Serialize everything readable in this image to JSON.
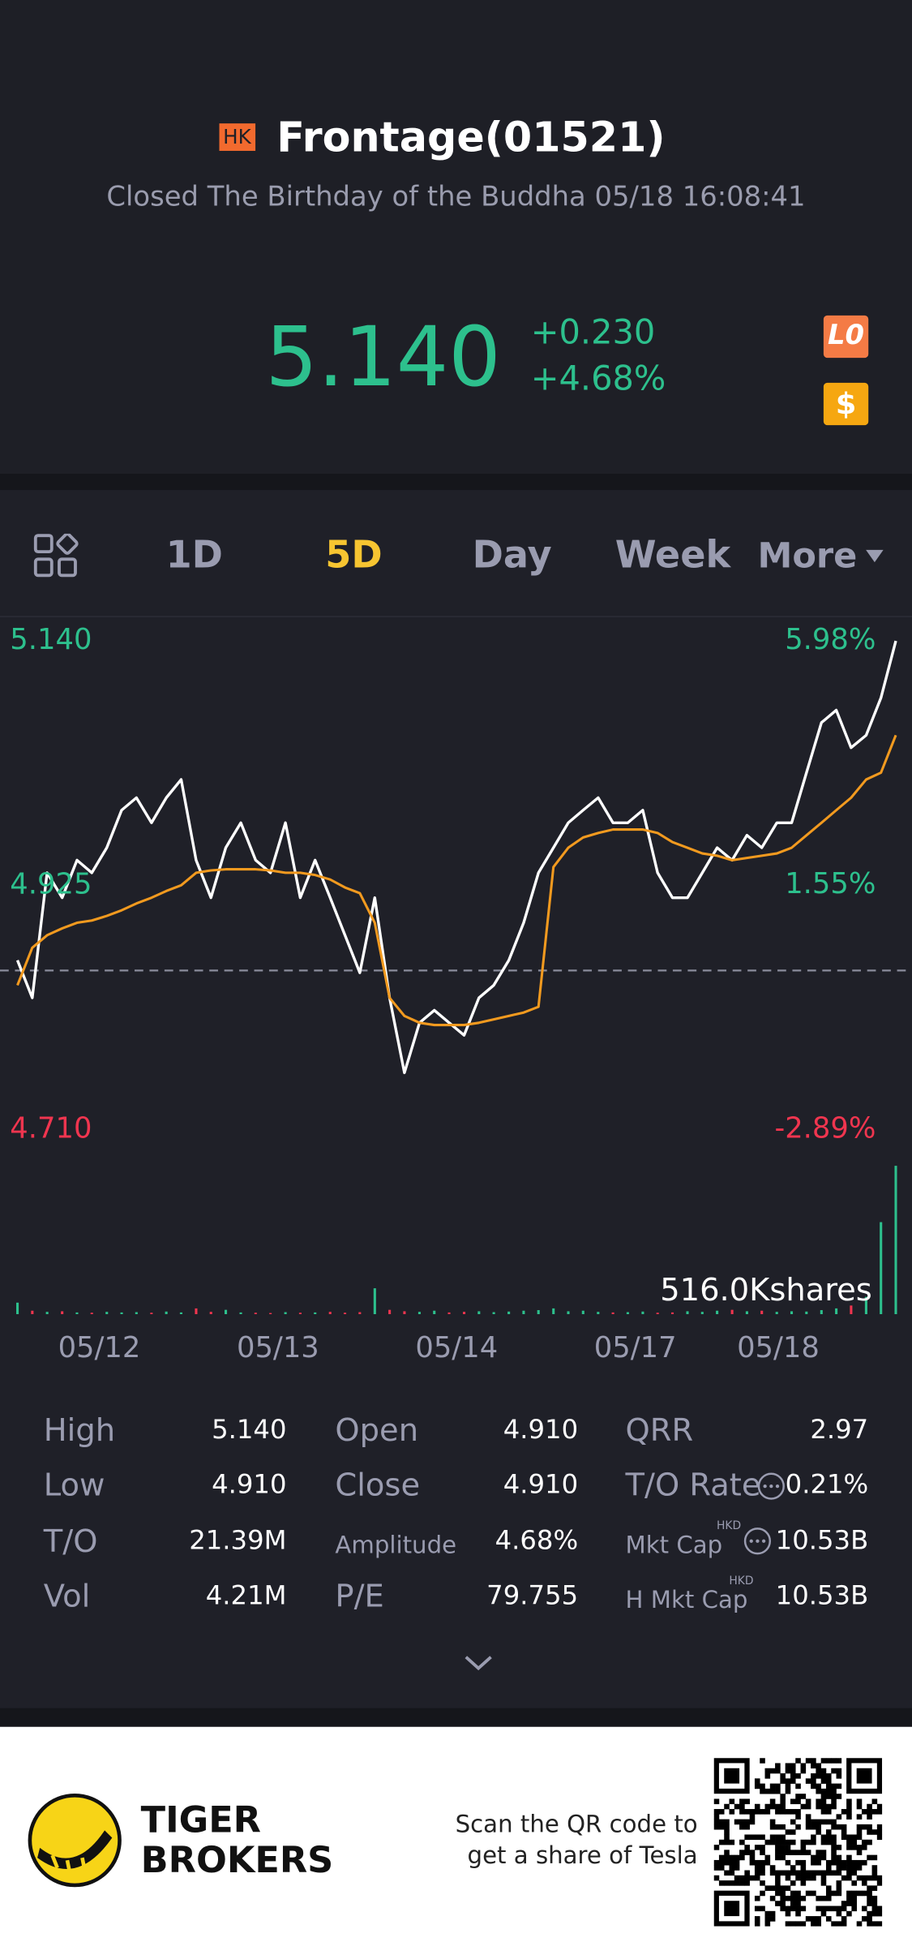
{
  "header": {
    "market": "HK",
    "title": "Frontage(01521)",
    "status": "Closed The Birthday of the Buddha 05/18 16:08:41"
  },
  "quote": {
    "price": "5.140",
    "change": "+0.230",
    "change_pct": "+4.68%",
    "level_badge": "L0"
  },
  "tabs": [
    "1D",
    "5D",
    "Day",
    "Week",
    "More"
  ],
  "chart_data": {
    "type": "line",
    "x": [
      0.042,
      0.125,
      0.208,
      0.292,
      0.375,
      0.458,
      0.542,
      0.625,
      0.708,
      0.792,
      0.875,
      0.958,
      1.042,
      1.125,
      1.208,
      1.292,
      1.375,
      1.458,
      1.542,
      1.625,
      1.708,
      1.792,
      1.875,
      1.958,
      2.042,
      2.125,
      2.208,
      2.292,
      2.375,
      2.458,
      2.542,
      2.625,
      2.708,
      2.792,
      2.875,
      2.958,
      3.042,
      3.125,
      3.208,
      3.292,
      3.375,
      3.458,
      3.542,
      3.625,
      3.708,
      3.792,
      3.875,
      3.958,
      4.042,
      4.125,
      4.208,
      4.292,
      4.375,
      4.458,
      4.542,
      4.625,
      4.708,
      4.792,
      4.875,
      4.958
    ],
    "series": [
      {
        "color": "#ffffff",
        "values": [
          4.859,
          4.826,
          4.936,
          4.914,
          4.947,
          4.936,
          4.958,
          4.991,
          5.002,
          4.98,
          5.002,
          5.018,
          4.947,
          4.914,
          4.958,
          4.98,
          4.947,
          4.936,
          4.98,
          4.914,
          4.947,
          4.914,
          4.881,
          4.848,
          4.914,
          4.826,
          4.76,
          4.804,
          4.815,
          4.804,
          4.793,
          4.826,
          4.837,
          4.859,
          4.892,
          4.936,
          4.958,
          4.98,
          4.991,
          5.002,
          4.98,
          4.98,
          4.991,
          4.936,
          4.914,
          4.914,
          4.936,
          4.958,
          4.947,
          4.969,
          4.958,
          4.98,
          4.98,
          5.024,
          5.068,
          5.079,
          5.046,
          5.057,
          5.09,
          5.14
        ]
      },
      {
        "color": "#f29a1f",
        "values": [
          4.837,
          4.87,
          4.881,
          4.887,
          4.892,
          4.894,
          4.898,
          4.903,
          4.909,
          4.914,
          4.92,
          4.925,
          4.936,
          4.938,
          4.939,
          4.939,
          4.939,
          4.938,
          4.936,
          4.936,
          4.934,
          4.93,
          4.923,
          4.918,
          4.892,
          4.826,
          4.81,
          4.804,
          4.802,
          4.802,
          4.802,
          4.804,
          4.807,
          4.81,
          4.813,
          4.818,
          4.941,
          4.958,
          4.967,
          4.971,
          4.974,
          4.974,
          4.974,
          4.971,
          4.963,
          4.958,
          4.953,
          4.951,
          4.947,
          4.949,
          4.951,
          4.953,
          4.958,
          4.969,
          4.98,
          4.991,
          5.002,
          5.018,
          5.024,
          5.057
        ]
      }
    ],
    "xlim": [
      0,
      5
    ],
    "xticks": [
      {
        "value": 0.5,
        "label": "05/12"
      },
      {
        "value": 1.5,
        "label": "05/13"
      },
      {
        "value": 2.5,
        "label": "05/14"
      },
      {
        "value": 3.5,
        "label": "05/17"
      },
      {
        "value": 4.3,
        "label": "05/18"
      }
    ],
    "ylim": [
      4.71,
      5.14
    ],
    "yticks": [
      {
        "value": 5.14,
        "label": "5.140"
      },
      {
        "value": 4.925,
        "label": "4.925"
      },
      {
        "value": 4.71,
        "label": "4.710"
      }
    ],
    "y2lim": [
      -2.89,
      5.98
    ],
    "y2ticks": [
      {
        "value": 5.98,
        "label": "5.98%"
      },
      {
        "value": 1.55,
        "label": "1.55%"
      },
      {
        "value": -2.89,
        "label": "-2.89%"
      }
    ],
    "reference_line": 4.85,
    "volume": [
      40,
      12,
      8,
      10,
      6,
      5,
      8,
      6,
      7,
      5,
      9,
      6,
      20,
      8,
      15,
      6,
      5,
      4,
      7,
      5,
      6,
      8,
      5,
      7,
      90,
      15,
      10,
      8,
      12,
      6,
      8,
      10,
      7,
      9,
      12,
      14,
      20,
      10,
      12,
      8,
      6,
      7,
      9,
      5,
      6,
      10,
      8,
      12,
      15,
      10,
      12,
      8,
      10,
      9,
      14,
      20,
      30,
      60,
      320,
      516
    ],
    "volume_ylim": [
      0,
      516
    ],
    "volume_label": "516.0Kshares",
    "up_color": "#2dc08d",
    "down_color": "#f0354f"
  },
  "stats": [
    [
      "High",
      "5.140"
    ],
    [
      "Low",
      "4.910"
    ],
    [
      "T/O",
      "21.39M"
    ],
    [
      "Vol",
      "4.21M"
    ],
    [
      "Open",
      "4.910"
    ],
    [
      "Close",
      "4.910"
    ],
    [
      "Amplitude",
      "4.68%"
    ],
    [
      "P/E",
      "79.755"
    ],
    [
      "QRR",
      "2.97"
    ],
    [
      "T/O Rate",
      "0.21%"
    ],
    [
      "Mkt Cap",
      "10.53B"
    ],
    [
      "H Mkt Cap",
      "10.53B"
    ]
  ],
  "currency_tags": [
    "HKD",
    "HKD"
  ],
  "footer": {
    "brand": [
      "TIGER",
      "BROKERS"
    ],
    "qr_text": [
      "Scan the QR code to",
      "get a share of Tesla"
    ]
  }
}
